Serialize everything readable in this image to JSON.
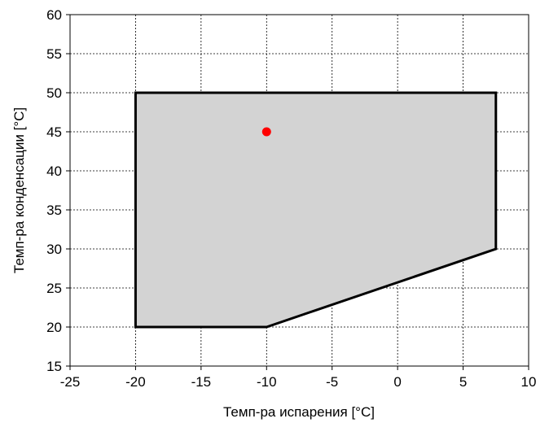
{
  "chart_data": {
    "type": "area",
    "title": "",
    "xlabel": "Темп-ра испарения [°C]",
    "ylabel": "Темп-ра конденсации [°C]",
    "xlim": [
      -25,
      10
    ],
    "ylim": [
      15,
      60
    ],
    "xticks": [
      -25,
      -20,
      -15,
      -10,
      -5,
      0,
      5,
      10
    ],
    "yticks": [
      15,
      20,
      25,
      30,
      35,
      40,
      45,
      50,
      55,
      60
    ],
    "xtick_labels": [
      "-25",
      "-20",
      "-15",
      "-10",
      "-5",
      "0",
      "5",
      "10"
    ],
    "ytick_labels": [
      "15",
      "20",
      "25",
      "30",
      "35",
      "40",
      "45",
      "50",
      "55",
      "60"
    ],
    "grid": true,
    "envelope": {
      "x": [
        -20,
        7.5,
        7.5,
        -10,
        -20
      ],
      "y": [
        50,
        50,
        30,
        20,
        20
      ],
      "fill": "#d3d3d3",
      "stroke": "#000000"
    },
    "operating_point": {
      "x": -10,
      "y": 45,
      "color": "#ff0000"
    }
  }
}
